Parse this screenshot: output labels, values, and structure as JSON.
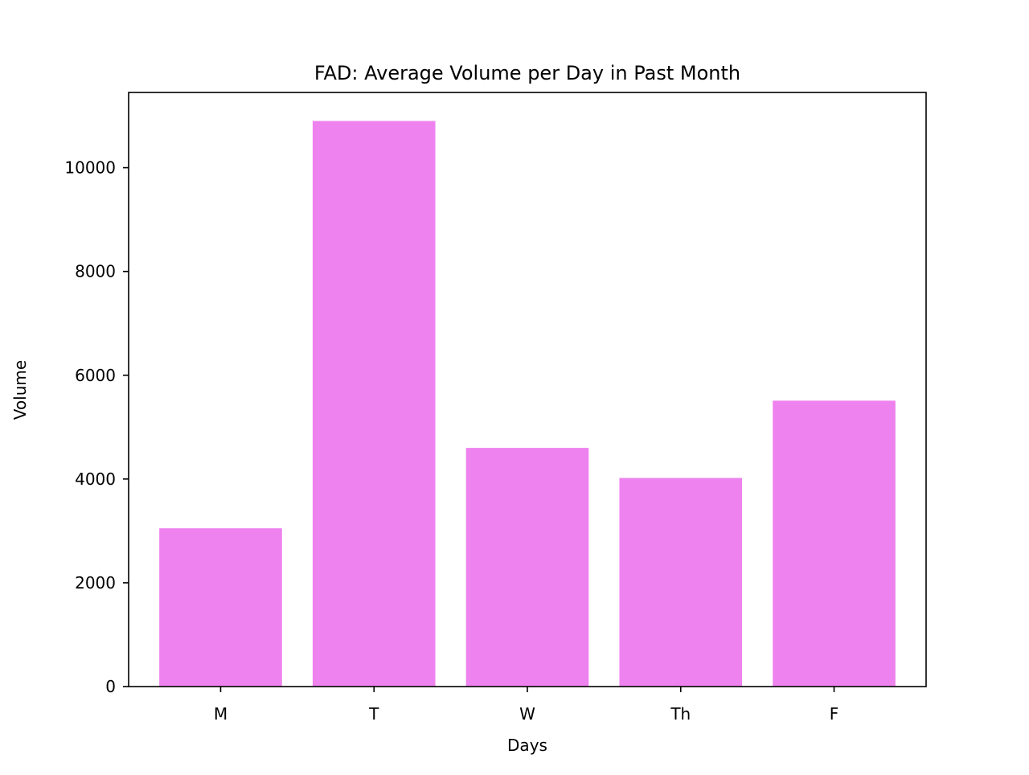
{
  "chart_data": {
    "type": "bar",
    "title": "FAD: Average Volume per Day in Past Month",
    "xlabel": "Days",
    "ylabel": "Volume",
    "categories": [
      "M",
      "T",
      "W",
      "Th",
      "F"
    ],
    "values": [
      3050,
      10900,
      4600,
      4020,
      5510
    ],
    "ylim": [
      0,
      11450
    ],
    "yticks": [
      0,
      2000,
      4000,
      6000,
      8000,
      10000
    ],
    "bar_color": "#ee82ee",
    "grid": false,
    "legend": "none"
  }
}
